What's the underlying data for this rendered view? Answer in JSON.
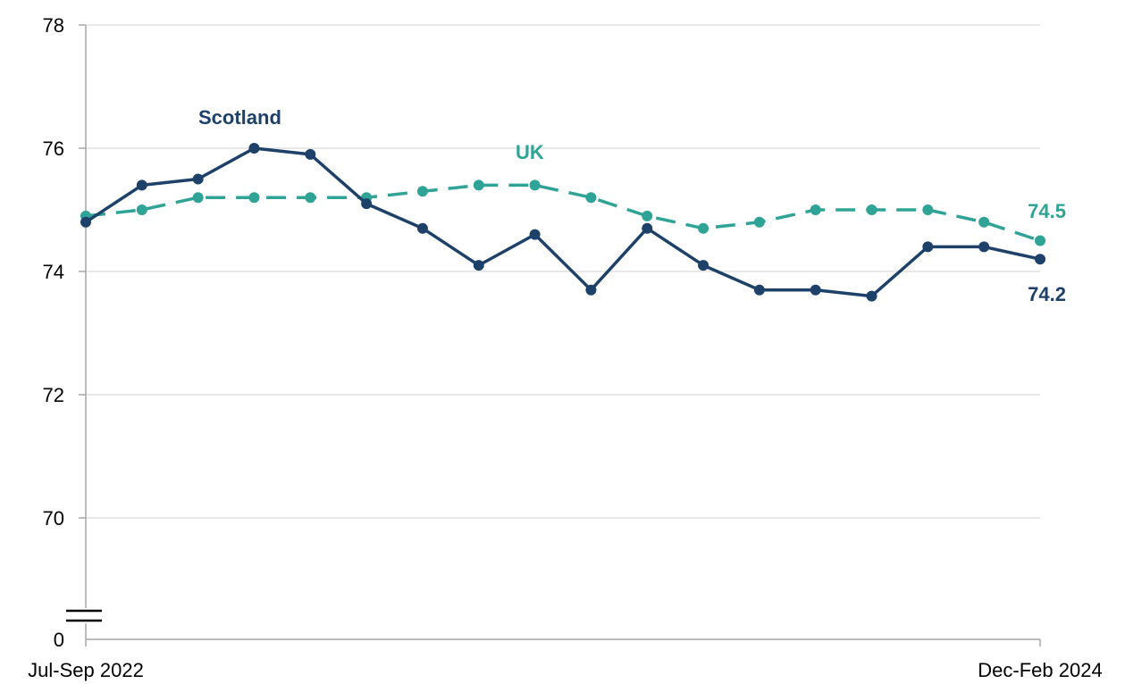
{
  "chart_data": {
    "type": "line",
    "x": [
      "Jul-Sep 2022",
      "",
      "",
      "",
      "",
      "",
      "",
      "",
      "",
      "",
      "",
      "",
      "",
      "",
      "",
      "",
      "",
      "Dec-Feb 2024"
    ],
    "x_tick_labels": [
      "Jul-Sep 2022",
      "Dec-Feb 2024"
    ],
    "y_tick_labels": [
      "0",
      "70",
      "72",
      "74",
      "76",
      "78"
    ],
    "ylim": [
      69,
      78
    ],
    "axis_break": true,
    "grid": true,
    "series": [
      {
        "name": "Scotland",
        "color": "#1d4168",
        "line_style": "solid",
        "values": [
          74.8,
          75.4,
          75.5,
          76.0,
          75.9,
          75.1,
          74.7,
          74.1,
          74.6,
          73.7,
          74.7,
          74.1,
          73.7,
          73.7,
          73.6,
          74.4,
          74.4,
          74.2
        ],
        "end_label": "74.2"
      },
      {
        "name": "UK",
        "color": "#2fa395",
        "line_style": "dashed",
        "values": [
          74.9,
          75.0,
          75.2,
          75.2,
          75.2,
          75.2,
          75.3,
          75.4,
          75.4,
          75.2,
          74.9,
          74.7,
          74.8,
          75.0,
          75.0,
          75.0,
          74.8,
          74.5
        ],
        "end_label": "74.5"
      }
    ]
  }
}
